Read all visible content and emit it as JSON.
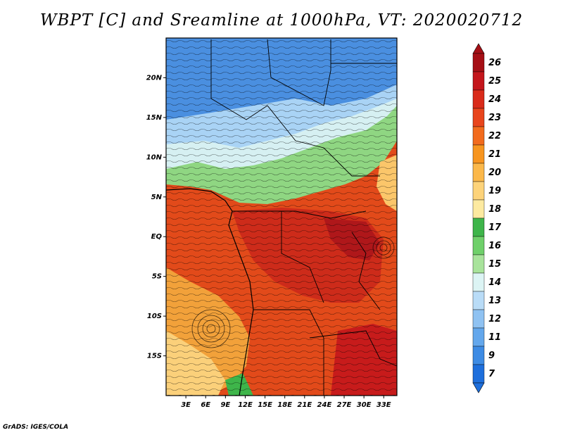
{
  "title": "WBPT [C] and Sreamline at 1000hPa, VT: 2020020712",
  "footer": "GrADS: IGES/COLA",
  "map": {
    "lat_range": [
      -20,
      25
    ],
    "lon_range": [
      0,
      35
    ],
    "lat_ticks": [
      {
        "value": 20,
        "label": "20N"
      },
      {
        "value": 15,
        "label": "15N"
      },
      {
        "value": 10,
        "label": "10N"
      },
      {
        "value": 5,
        "label": "5N"
      },
      {
        "value": 0,
        "label": "EQ"
      },
      {
        "value": -5,
        "label": "5S"
      },
      {
        "value": -10,
        "label": "10S"
      },
      {
        "value": -15,
        "label": "15S"
      }
    ],
    "lon_ticks": [
      {
        "value": 3,
        "label": "3E"
      },
      {
        "value": 6,
        "label": "6E"
      },
      {
        "value": 9,
        "label": "9E"
      },
      {
        "value": 12,
        "label": "12E"
      },
      {
        "value": 15,
        "label": "15E"
      },
      {
        "value": 18,
        "label": "18E"
      },
      {
        "value": 21,
        "label": "21E"
      },
      {
        "value": 24,
        "label": "24E"
      },
      {
        "value": 27,
        "label": "27E"
      },
      {
        "value": 30,
        "label": "30E"
      },
      {
        "value": 33,
        "label": "33E"
      }
    ]
  },
  "colorbar": {
    "labels": [
      "26",
      "25",
      "24",
      "23",
      "22",
      "21",
      "20",
      "19",
      "18",
      "17",
      "16",
      "15",
      "14",
      "13",
      "12",
      "11",
      "9",
      "7"
    ],
    "colors": [
      "#a50f15",
      "#c4161c",
      "#d92b1a",
      "#e8451c",
      "#f26b1d",
      "#f7951f",
      "#fbb84a",
      "#fdd37a",
      "#fdeaa0",
      "#3eb54a",
      "#6fd06a",
      "#a8e39b",
      "#dcf4f4",
      "#b9dcf7",
      "#8fc2f2",
      "#63a7ec",
      "#3d8be4",
      "#1e6fdc"
    ]
  }
}
